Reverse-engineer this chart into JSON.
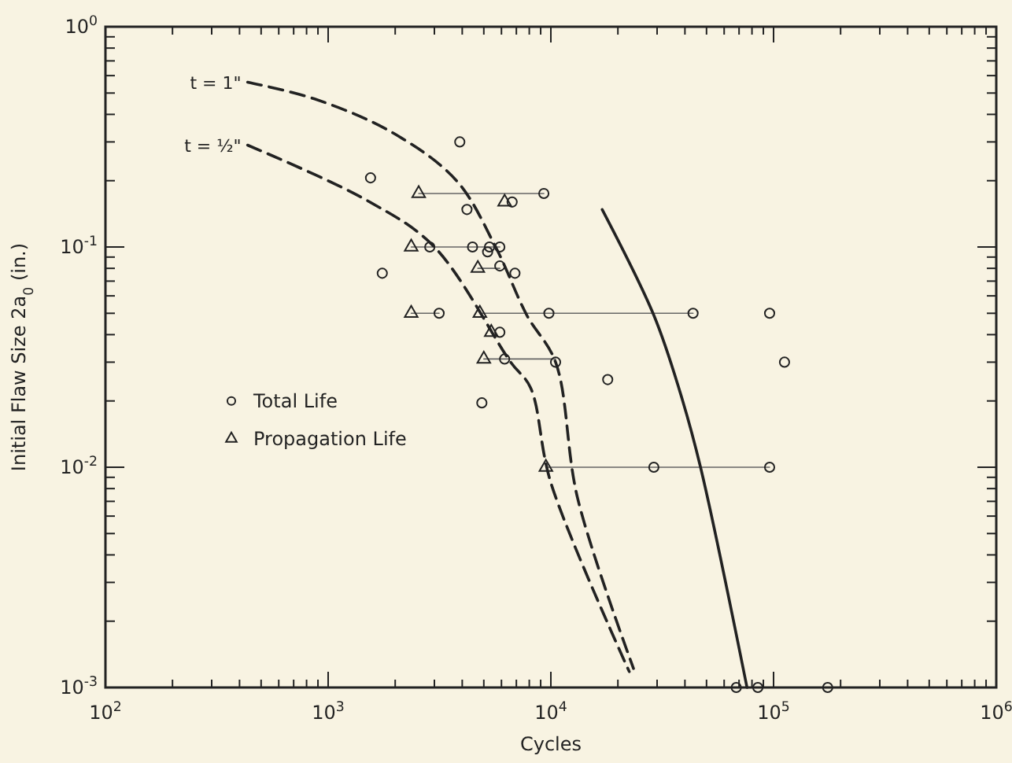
{
  "chart_data": {
    "type": "scatter",
    "xlabel": "Cycles",
    "ylabel": "Initial Flaw Size 2a$_{0}$ (in.)",
    "log": "xy",
    "grid": false,
    "legend": "left",
    "xlim": [
      100,
      1000000
    ],
    "ylim": [
      0.001,
      1
    ],
    "xticks": [
      {
        "value": 100,
        "label": "10$^{2}$"
      },
      {
        "value": 200,
        "label": null
      },
      {
        "value": 300,
        "label": null
      },
      {
        "value": 400,
        "label": null
      },
      {
        "value": 500,
        "label": null
      },
      {
        "value": 600,
        "label": null
      },
      {
        "value": 700,
        "label": null
      },
      {
        "value": 800,
        "label": null
      },
      {
        "value": 900,
        "label": null
      },
      {
        "value": 1000,
        "label": "10$^{3}$"
      },
      {
        "value": 2000,
        "label": null
      },
      {
        "value": 3000,
        "label": null
      },
      {
        "value": 4000,
        "label": null
      },
      {
        "value": 5000,
        "label": null
      },
      {
        "value": 6000,
        "label": null
      },
      {
        "value": 7000,
        "label": null
      },
      {
        "value": 8000,
        "label": null
      },
      {
        "value": 9000,
        "label": null
      },
      {
        "value": 10000,
        "label": "10$^{4}$"
      },
      {
        "value": 20000,
        "label": null
      },
      {
        "value": 30000,
        "label": null
      },
      {
        "value": 40000,
        "label": null
      },
      {
        "value": 50000,
        "label": null
      },
      {
        "value": 60000,
        "label": null
      },
      {
        "value": 70000,
        "label": null
      },
      {
        "value": 80000,
        "label": null
      },
      {
        "value": 90000,
        "label": null
      },
      {
        "value": 100000,
        "label": "10$^{5}$"
      },
      {
        "value": 200000,
        "label": null
      },
      {
        "value": 300000,
        "label": null
      },
      {
        "value": 400000,
        "label": null
      },
      {
        "value": 500000,
        "label": null
      },
      {
        "value": 600000,
        "label": null
      },
      {
        "value": 700000,
        "label": null
      },
      {
        "value": 800000,
        "label": null
      },
      {
        "value": 900000,
        "label": null
      },
      {
        "value": 1000000,
        "label": "10$^{6}$"
      }
    ],
    "yticks": [
      {
        "value": 0.001,
        "label": "10$^{-3}$"
      },
      {
        "value": 0.002,
        "label": null
      },
      {
        "value": 0.003,
        "label": null
      },
      {
        "value": 0.004,
        "label": null
      },
      {
        "value": 0.005,
        "label": null
      },
      {
        "value": 0.006,
        "label": null
      },
      {
        "value": 0.007,
        "label": null
      },
      {
        "value": 0.008,
        "label": null
      },
      {
        "value": 0.009,
        "label": null
      },
      {
        "value": 0.01,
        "label": "10$^{-2}$"
      },
      {
        "value": 0.02,
        "label": null
      },
      {
        "value": 0.03,
        "label": null
      },
      {
        "value": 0.04,
        "label": null
      },
      {
        "value": 0.05,
        "label": null
      },
      {
        "value": 0.06,
        "label": null
      },
      {
        "value": 0.07,
        "label": null
      },
      {
        "value": 0.08,
        "label": null
      },
      {
        "value": 0.09,
        "label": null
      },
      {
        "value": 0.1,
        "label": "10$^{-1}$"
      },
      {
        "value": 0.2,
        "label": null
      },
      {
        "value": 0.3,
        "label": null
      },
      {
        "value": 0.4,
        "label": null
      },
      {
        "value": 0.5,
        "label": null
      },
      {
        "value": 0.6,
        "label": null
      },
      {
        "value": 0.7,
        "label": null
      },
      {
        "value": 0.8,
        "label": null
      },
      {
        "value": 0.9,
        "label": null
      },
      {
        "value": 1,
        "label": "10$^{0}$"
      }
    ],
    "series": [
      {
        "name": "Total Life",
        "marker": "circle",
        "color": "#222222",
        "x": [
          3900,
          1550,
          1750,
          2860,
          3150,
          4450,
          5300,
          5900,
          5200,
          4200,
          5900,
          6900,
          5900,
          6200,
          9300,
          6700,
          9800,
          43500,
          96000,
          10500,
          112000,
          18000,
          4900,
          29000,
          96000,
          68000,
          85000,
          175000
        ],
        "values": [
          0.3,
          0.206,
          0.076,
          0.1,
          0.05,
          0.1,
          0.1,
          0.1,
          0.095,
          0.148,
          0.082,
          0.076,
          0.041,
          0.031,
          0.175,
          0.16,
          0.05,
          0.05,
          0.05,
          0.03,
          0.03,
          0.025,
          0.0196,
          0.01,
          0.01,
          0.001,
          0.001,
          0.001
        ]
      },
      {
        "name": "Propagation Life",
        "marker": "triangle",
        "color": "#222222",
        "x": [
          2550,
          2360,
          2360,
          4800,
          4700,
          5400,
          5000,
          6200,
          9500
        ],
        "values": [
          0.175,
          0.1,
          0.05,
          0.05,
          0.08,
          0.041,
          0.031,
          0.16,
          0.01
        ]
      },
      {
        "type": "line",
        "marker": "none",
        "line_style": "solid",
        "color": "#666666",
        "x": [
          2550,
          9300
        ],
        "values": [
          0.175,
          0.175
        ]
      },
      {
        "type": "line",
        "marker": "none",
        "line_style": "solid",
        "color": "#666666",
        "x": [
          2360,
          5900
        ],
        "values": [
          0.1,
          0.1
        ]
      },
      {
        "type": "line",
        "marker": "none",
        "line_style": "solid",
        "color": "#666666",
        "x": [
          2360,
          3150
        ],
        "values": [
          0.05,
          0.05
        ]
      },
      {
        "type": "line",
        "marker": "none",
        "line_style": "solid",
        "color": "#666666",
        "x": [
          4800,
          43500
        ],
        "values": [
          0.05,
          0.05
        ]
      },
      {
        "type": "line",
        "marker": "none",
        "line_style": "solid",
        "color": "#666666",
        "x": [
          4700,
          5900
        ],
        "values": [
          0.08,
          0.08
        ]
      },
      {
        "type": "line",
        "marker": "none",
        "line_style": "solid",
        "color": "#666666",
        "x": [
          5000,
          10500
        ],
        "values": [
          0.031,
          0.031
        ]
      },
      {
        "type": "line",
        "marker": "none",
        "line_style": "solid",
        "color": "#666666",
        "x": [
          9500,
          96000
        ],
        "values": [
          0.01,
          0.01
        ]
      },
      {
        "name": "t = 1\"",
        "type": "line",
        "marker": "none",
        "line_style": "dashed",
        "color": "#222222",
        "x": [
          435,
          870,
          1950,
          3770,
          5650,
          7800,
          10500,
          13200,
          23500
        ],
        "values": [
          0.56,
          0.47,
          0.33,
          0.2,
          0.1,
          0.049,
          0.03,
          0.0072,
          0.00122
        ]
      },
      {
        "name": "t = ½\"",
        "type": "line",
        "marker": "none",
        "line_style": "dashed",
        "color": "#222222",
        "x": [
          435,
          1490,
          3000,
          6600,
          8100,
          10000,
          22500
        ],
        "values": [
          0.29,
          0.163,
          0.1,
          0.03,
          0.023,
          0.0085,
          0.00118
        ]
      },
      {
        "type": "line",
        "marker": "none",
        "line_style": "solid",
        "color": "#222222",
        "x": [
          17000,
          29000,
          38000,
          47000,
          76000
        ],
        "values": [
          0.148,
          0.049,
          0.022,
          0.01,
          0.001
        ]
      }
    ]
  }
}
